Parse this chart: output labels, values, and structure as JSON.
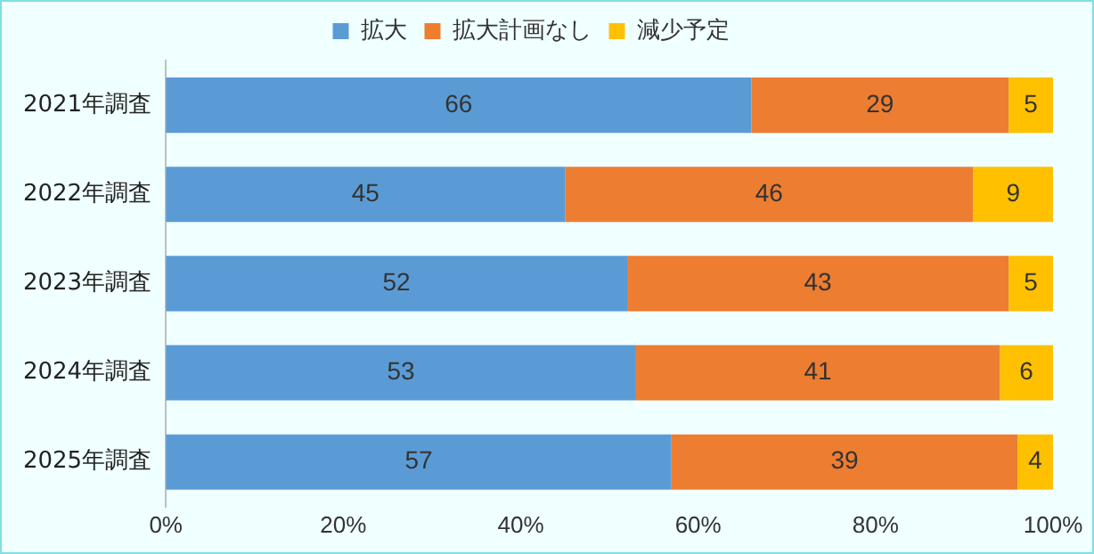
{
  "chart_data": {
    "type": "bar",
    "orientation": "horizontal",
    "stacked": true,
    "categories": [
      "2021年調査",
      "2022年調査",
      "2023年調査",
      "2024年調査",
      "2025年調査"
    ],
    "series": [
      {
        "name": "拡大",
        "color": "#5b9bd5",
        "values": [
          66,
          45,
          52,
          53,
          57
        ]
      },
      {
        "name": "拡大計画なし",
        "color": "#ed7d31",
        "values": [
          29,
          46,
          43,
          41,
          39
        ]
      },
      {
        "name": "減少予定",
        "color": "#ffc000",
        "values": [
          5,
          9,
          5,
          6,
          4
        ]
      }
    ],
    "xlim": [
      0,
      100
    ],
    "xticks": [
      {
        "value": 0,
        "label": "0%"
      },
      {
        "value": 20,
        "label": "20%"
      },
      {
        "value": 40,
        "label": "40%"
      },
      {
        "value": 60,
        "label": "60%"
      },
      {
        "value": 80,
        "label": "80%"
      },
      {
        "value": 100,
        "label": "100%"
      }
    ],
    "data_labels": true,
    "legend": "top",
    "grid": false
  }
}
